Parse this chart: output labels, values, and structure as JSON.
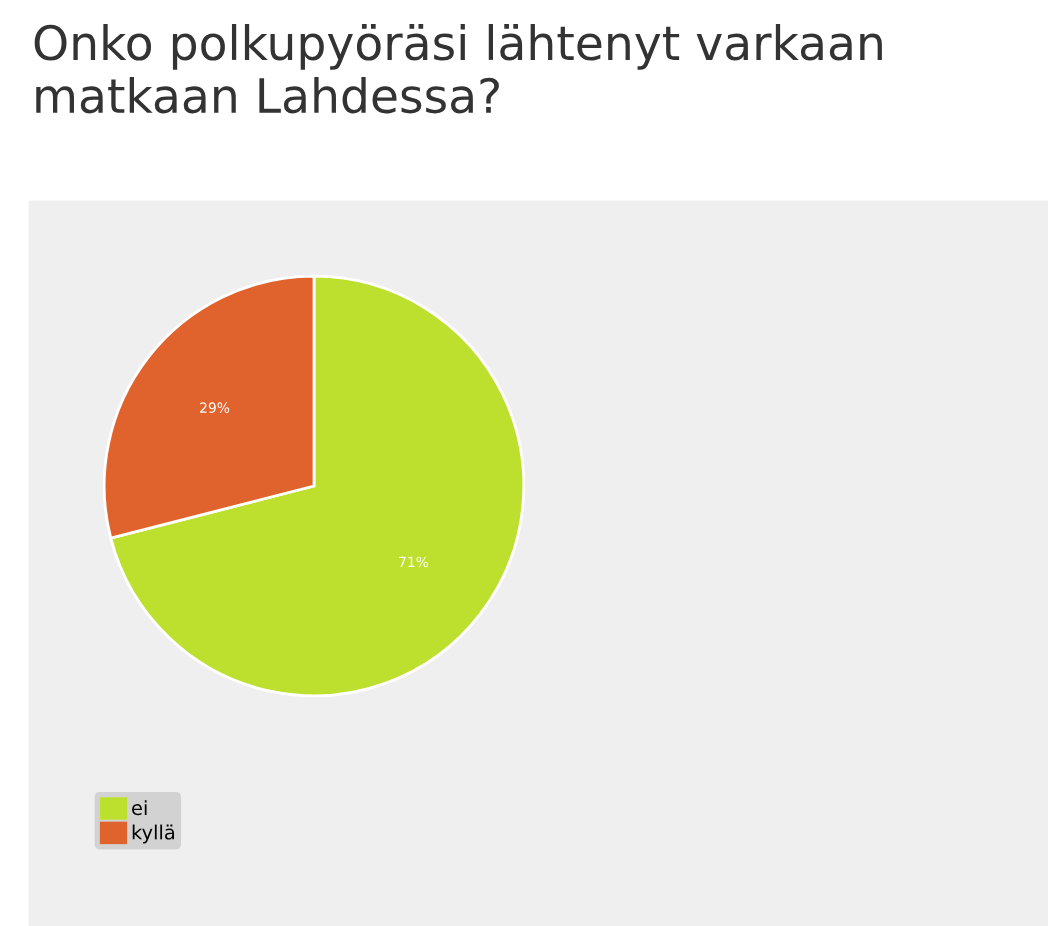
{
  "chart_data": {
    "type": "pie",
    "title": "Onko polkupyöräsi lähtenyt varkaan matkaan Lahdessa?",
    "categories": [
      "ei",
      "kyllä"
    ],
    "values": [
      71,
      29
    ],
    "colors": [
      "#bde02e",
      "#e0622c"
    ],
    "value_labels": [
      "71%",
      "29%"
    ],
    "legend": "bottom left"
  }
}
